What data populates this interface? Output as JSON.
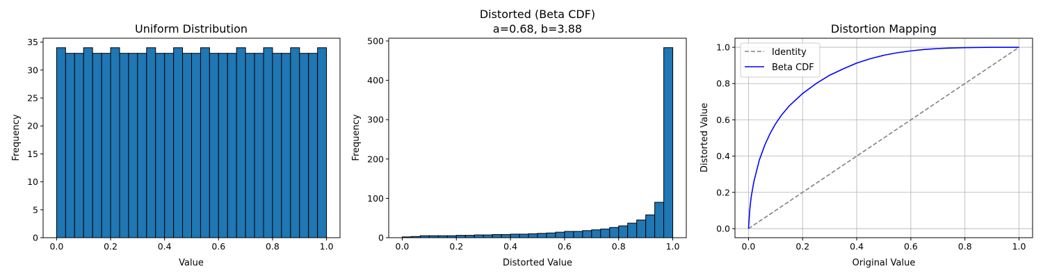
{
  "chart_data": [
    {
      "type": "bar",
      "title": "Uniform Distribution",
      "xlabel": "Value",
      "ylabel": "Frequency",
      "xlim": [
        -0.05,
        1.05
      ],
      "ylim": [
        0,
        35.7
      ],
      "xticks": [
        "0.0",
        "0.2",
        "0.4",
        "0.6",
        "0.8",
        "1.0"
      ],
      "yticks": [
        "0",
        "5",
        "10",
        "15",
        "20",
        "25",
        "30",
        "35"
      ],
      "bin_range": [
        0,
        1
      ],
      "values": [
        34,
        33,
        33,
        34,
        33,
        33,
        34,
        33,
        33,
        33,
        34,
        33,
        33,
        34,
        33,
        33,
        34,
        33,
        33,
        33,
        34,
        33,
        33,
        34,
        33,
        33,
        34,
        33,
        33,
        34
      ],
      "bar_color": "#1f77b4",
      "edge_color": "#000000",
      "grid": false
    },
    {
      "type": "bar",
      "title": "Distorted (Beta CDF)",
      "subtitle": "a=0.68, b=3.88",
      "xlabel": "Distorted Value",
      "ylabel": "Frequency",
      "xlim": [
        -0.05,
        1.05
      ],
      "ylim": [
        0,
        507
      ],
      "xticks": [
        "0.0",
        "0.2",
        "0.4",
        "0.6",
        "0.8",
        "1.0"
      ],
      "yticks": [
        "0",
        "100",
        "200",
        "300",
        "400",
        "500"
      ],
      "bin_range": [
        0,
        1
      ],
      "values": [
        2,
        3,
        5,
        5,
        5,
        5,
        6,
        6,
        7,
        7,
        8,
        8,
        9,
        9,
        10,
        11,
        12,
        14,
        16,
        16,
        18,
        20,
        22,
        26,
        30,
        37,
        45,
        58,
        90,
        483
      ],
      "bar_color": "#1f77b4",
      "edge_color": "#000000",
      "grid": false
    },
    {
      "type": "line",
      "title": "Distortion Mapping",
      "xlabel": "Original Value",
      "ylabel": "Distorted Value",
      "xlim": [
        -0.05,
        1.05
      ],
      "ylim": [
        -0.05,
        1.05
      ],
      "xticks": [
        "0.0",
        "0.2",
        "0.4",
        "0.6",
        "0.8",
        "1.0"
      ],
      "yticks": [
        "0.0",
        "0.2",
        "0.4",
        "0.6",
        "0.8",
        "1.0"
      ],
      "grid": true,
      "legend_position": "top-left",
      "series": [
        {
          "name": "Identity",
          "color": "#808080",
          "style": "dashed",
          "x": [
            0,
            1
          ],
          "y": [
            0,
            1
          ]
        },
        {
          "name": "Beta CDF",
          "color": "#0000ff",
          "style": "solid",
          "x": [
            0,
            0.005,
            0.01,
            0.02,
            0.04,
            0.06,
            0.08,
            0.1,
            0.12,
            0.15,
            0.2,
            0.25,
            0.3,
            0.35,
            0.4,
            0.45,
            0.5,
            0.55,
            0.6,
            0.65,
            0.7,
            0.75,
            0.8,
            0.85,
            0.9,
            0.95,
            1.0
          ],
          "y": [
            0,
            0.11,
            0.175,
            0.26,
            0.378,
            0.46,
            0.525,
            0.578,
            0.622,
            0.676,
            0.745,
            0.8,
            0.846,
            0.881,
            0.913,
            0.937,
            0.956,
            0.97,
            0.98,
            0.988,
            0.993,
            0.996,
            0.998,
            0.999,
            1.0,
            1.0,
            1.0
          ]
        }
      ]
    }
  ]
}
